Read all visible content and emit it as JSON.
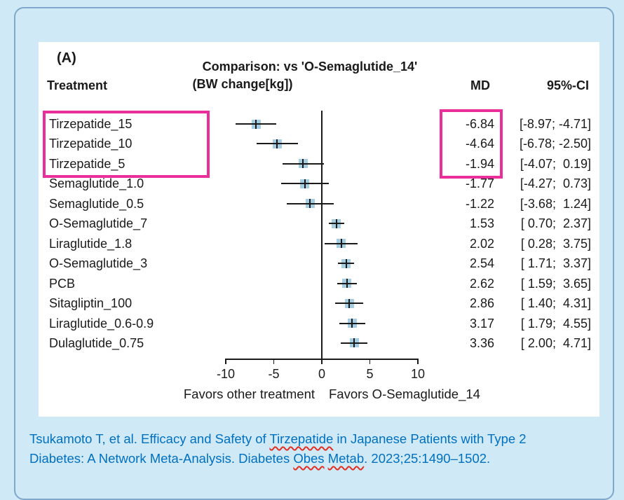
{
  "slide": {
    "background_color": "#cfe9f7",
    "border_color": "#7fa8cb"
  },
  "panel": {
    "label": "(A)",
    "title_line1": "Comparison: vs 'O-Semaglutide_14'",
    "title_line2": "(BW change[kg])",
    "columns": {
      "treatment": "Treatment",
      "md": "MD",
      "ci": "95%-CI"
    }
  },
  "chart_data": {
    "type": "forest",
    "title": "Comparison: vs 'O-Semaglutide_14' (BW change[kg])",
    "xlabel_left": "Favors other treatment",
    "xlabel_right": "Favors O-Semaglutide_14",
    "x_ticks": [
      -10,
      -5,
      0,
      5,
      10
    ],
    "xlim": [
      -10,
      10
    ],
    "zero_line_x": 0,
    "grid": false,
    "marker_color": "#a6cee3",
    "ci_line_color": "#1a1a1a",
    "highlight_color": "#ea2f9b",
    "highlighted_rows": [
      0,
      1,
      2
    ],
    "rows": [
      {
        "treatment": "Tirzepatide_15",
        "md": -6.84,
        "lo": -8.97,
        "hi": -4.71,
        "md_text": "-6.84",
        "ci_text": "[-8.97; -4.71]"
      },
      {
        "treatment": "Tirzepatide_10",
        "md": -4.64,
        "lo": -6.78,
        "hi": -2.5,
        "md_text": "-4.64",
        "ci_text": "[-6.78; -2.50]"
      },
      {
        "treatment": "Tirzepatide_5",
        "md": -1.94,
        "lo": -4.07,
        "hi": 0.19,
        "md_text": "-1.94",
        "ci_text": "[-4.07;  0.19]"
      },
      {
        "treatment": "Semaglutide_1.0",
        "md": -1.77,
        "lo": -4.27,
        "hi": 0.73,
        "md_text": "-1.77",
        "ci_text": "[-4.27;  0.73]"
      },
      {
        "treatment": "Semaglutide_0.5",
        "md": -1.22,
        "lo": -3.68,
        "hi": 1.24,
        "md_text": "-1.22",
        "ci_text": "[-3.68;  1.24]"
      },
      {
        "treatment": "O-Semaglutide_7",
        "md": 1.53,
        "lo": 0.7,
        "hi": 2.37,
        "md_text": "1.53",
        "ci_text": "[ 0.70;  2.37]"
      },
      {
        "treatment": "Liraglutide_1.8",
        "md": 2.02,
        "lo": 0.28,
        "hi": 3.75,
        "md_text": "2.02",
        "ci_text": "[ 0.28;  3.75]"
      },
      {
        "treatment": "O-Semaglutide_3",
        "md": 2.54,
        "lo": 1.71,
        "hi": 3.37,
        "md_text": "2.54",
        "ci_text": "[ 1.71;  3.37]"
      },
      {
        "treatment": "PCB",
        "md": 2.62,
        "lo": 1.59,
        "hi": 3.65,
        "md_text": "2.62",
        "ci_text": "[ 1.59;  3.65]"
      },
      {
        "treatment": "Sitagliptin_100",
        "md": 2.86,
        "lo": 1.4,
        "hi": 4.31,
        "md_text": "2.86",
        "ci_text": "[ 1.40;  4.31]"
      },
      {
        "treatment": "Liraglutide_0.6-0.9",
        "md": 3.17,
        "lo": 1.79,
        "hi": 4.55,
        "md_text": "3.17",
        "ci_text": "[ 1.79;  4.55]"
      },
      {
        "treatment": "Dulaglutide_0.75",
        "md": 3.36,
        "lo": 2.0,
        "hi": 4.71,
        "md_text": "3.36",
        "ci_text": "[ 2.00;  4.71]"
      }
    ]
  },
  "citation": {
    "color": "#0070C0",
    "lines": [
      [
        {
          "text": "Tsukamoto T, et al. Efficacy and Safety of "
        },
        {
          "text": "Tirzepatide",
          "misspelled": true
        },
        {
          "text": " in Japanese Patients with Type 2"
        }
      ],
      [
        {
          "text": "Diabetes: A Network Meta-Analysis. Diabetes "
        },
        {
          "text": "Obes",
          "misspelled": true
        },
        {
          "text": " "
        },
        {
          "text": "Metab",
          "misspelled": true
        },
        {
          "text": ". 2023;25:1490–1502."
        }
      ]
    ]
  }
}
